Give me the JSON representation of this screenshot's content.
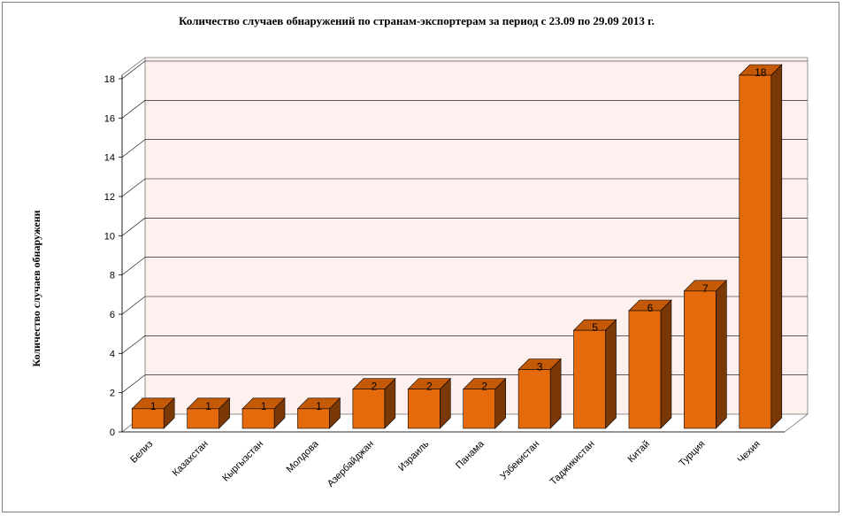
{
  "chart_data": {
    "type": "bar",
    "title": "Количество случаев обнаружений по странам-экспортерам за период с 23.09 по 29.09 2013 г.",
    "ylabel": "Количество случаев обнаружени",
    "xlabel": "",
    "categories": [
      "Белиз",
      "Казахстан",
      "Кыргызстан",
      "Молдова",
      "Азербайджан",
      "Израиль",
      "Панама",
      "Узбекистан",
      "Таджикистан",
      "Китай",
      "Турция",
      "Чехия"
    ],
    "values": [
      1,
      1,
      1,
      1,
      2,
      2,
      2,
      3,
      5,
      6,
      7,
      18
    ],
    "ylim": [
      0,
      18
    ],
    "yticks": [
      0,
      2,
      4,
      6,
      8,
      10,
      12,
      14,
      16,
      18
    ],
    "grid": true,
    "legend": "none",
    "style": "3d-bar",
    "colors": {
      "bar_front": "#e56a0c",
      "bar_top": "#c45a08",
      "bar_side": "#7a3806",
      "back_wall": "#fdf0ee",
      "floor": "#ffffff",
      "grid": "#000000"
    }
  }
}
